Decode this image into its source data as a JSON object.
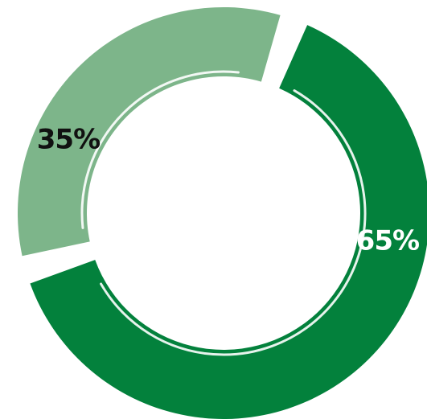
{
  "chart_data": {
    "type": "pie",
    "variant": "donut",
    "title": "",
    "categories": [
      "",
      ""
    ],
    "values": [
      65,
      35
    ],
    "data_labels": [
      "65%",
      "35%"
    ],
    "colors": [
      "#03813c",
      "#7db58a"
    ],
    "label_colors": [
      "#ffffff",
      "#111111"
    ],
    "legend": "none"
  }
}
